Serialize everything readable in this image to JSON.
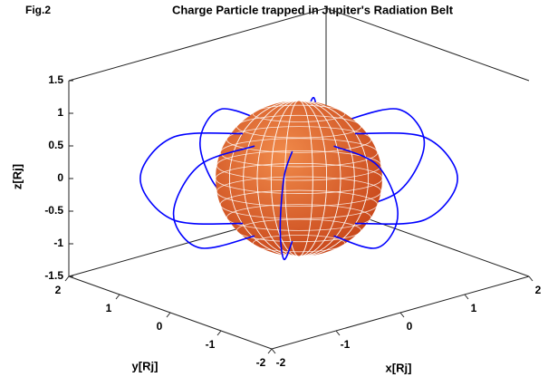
{
  "chart_data": {
    "type": "line3d",
    "figure_label": "Fig.2",
    "title": "Charge Particle trapped in Jupiter's Radiation Belt",
    "x_label": "x[Rj]",
    "y_label": "y[Rj]",
    "z_label": "z[Rj]",
    "xlim": [
      -2,
      2
    ],
    "ylim": [
      -2,
      2
    ],
    "zlim": [
      -1.5,
      1.5
    ],
    "xticks": [
      -2,
      -1,
      0,
      1,
      2
    ],
    "yticks": [
      -2,
      -1,
      0,
      1,
      2
    ],
    "zticks": [
      -1.5,
      -1,
      -0.5,
      0,
      0.5,
      1,
      1.5
    ],
    "series": [
      {
        "color": "#0000ff",
        "x": [
          0.689,
          1.554,
          1.95,
          1.554,
          0.689
        ],
        "y": [
          0,
          0,
          0,
          0,
          0
        ],
        "z": [
          -0.689,
          -0.628,
          0,
          0.628,
          0.689
        ]
      },
      {
        "color": "#0000ff",
        "x": [
          0.487,
          1.099,
          1.379,
          1.099,
          0.487
        ],
        "y": [
          0.487,
          1.099,
          1.379,
          1.099,
          0.487
        ],
        "z": [
          -0.689,
          -0.628,
          0,
          0.628,
          0.689
        ]
      },
      {
        "color": "#0000ff",
        "x": [
          0,
          0,
          0,
          0,
          0
        ],
        "y": [
          0.689,
          1.554,
          1.95,
          1.554,
          0.689
        ],
        "z": [
          -0.689,
          -0.628,
          0,
          0.628,
          0.689
        ]
      },
      {
        "color": "#0000ff",
        "x": [
          -0.487,
          -1.099,
          -1.379,
          -1.099,
          -0.487
        ],
        "y": [
          0.487,
          1.099,
          1.379,
          1.099,
          0.487
        ],
        "z": [
          -0.689,
          -0.628,
          0,
          0.628,
          0.689
        ]
      },
      {
        "color": "#0000ff",
        "x": [
          -0.689,
          -1.554,
          -1.95,
          -1.554,
          -0.689
        ],
        "y": [
          0,
          0,
          0,
          0,
          0
        ],
        "z": [
          -0.689,
          -0.628,
          0,
          0.628,
          0.689
        ]
      },
      {
        "color": "#0000ff",
        "x": [
          -0.487,
          -1.099,
          -1.379,
          -1.099,
          -0.487
        ],
        "y": [
          -0.487,
          -1.099,
          -1.379,
          -1.099,
          -0.487
        ],
        "z": [
          -0.689,
          -0.628,
          0,
          0.628,
          0.689
        ]
      },
      {
        "color": "#0000ff",
        "x": [
          0,
          0,
          0,
          0,
          0
        ],
        "y": [
          -0.689,
          -1.554,
          -1.95,
          -1.554,
          -0.689
        ],
        "z": [
          -0.689,
          -0.628,
          0,
          0.628,
          0.689
        ]
      },
      {
        "color": "#0000ff",
        "x": [
          0.487,
          1.099,
          1.379,
          1.099,
          0.487
        ],
        "y": [
          -0.487,
          -1.099,
          -1.379,
          -1.099,
          -0.487
        ],
        "z": [
          -0.689,
          -0.628,
          0,
          0.628,
          0.689
        ]
      }
    ]
  }
}
